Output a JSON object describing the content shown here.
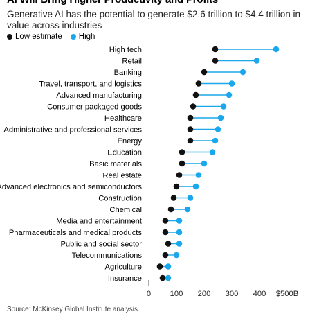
{
  "header": {
    "title": "AI Will Bring Higher Productivity and Profits",
    "subtitle": "Generative AI has the potential to generate $2.6 trillion to $4.4 trillion in value across industries"
  },
  "footer": {
    "source": "Source: McKinsey Global Institute analysis"
  },
  "colors": {
    "low": "#111111",
    "high": "#1aa7ec",
    "connector": "#1aa7ec"
  },
  "chart_data": {
    "type": "dumbbell",
    "title": "AI Will Bring Higher Productivity and Profits",
    "subtitle": "Generative AI has the potential to generate $2.6 trillion to $4.4 trillion in value across industries",
    "xlim": [
      0,
      500
    ],
    "x_ticks": [
      "0",
      "100",
      "200",
      "300",
      "400",
      "$500B"
    ],
    "x_tick_values": [
      0,
      100,
      200,
      300,
      400,
      500
    ],
    "legend": [
      "Low estimate",
      "High"
    ],
    "legend_position": "top-left",
    "grid": false,
    "categories": [
      "High tech",
      "Retail",
      "Banking",
      "Travel, transport, and logistics",
      "Advanced manufacturing",
      "Consumer packaged goods",
      "Healthcare",
      "Administrative and professional services",
      "Energy",
      "Education",
      "Basic materials",
      "Real estate",
      "Advanced electronics and semiconductors",
      "Construction",
      "Chemical",
      "Media and entertainment",
      "Pharmaceuticals and medical products",
      "Public and social sector",
      "Telecommunications",
      "Agriculture",
      "Insurance"
    ],
    "series": [
      {
        "name": "Low estimate",
        "values": [
          240,
          240,
          200,
          180,
          170,
          160,
          150,
          150,
          150,
          120,
          120,
          110,
          100,
          90,
          80,
          60,
          60,
          70,
          60,
          40,
          50
        ]
      },
      {
        "name": "High",
        "values": [
          460,
          390,
          340,
          300,
          290,
          270,
          260,
          250,
          240,
          230,
          200,
          180,
          170,
          150,
          140,
          110,
          110,
          110,
          100,
          70,
          70
        ]
      }
    ]
  }
}
